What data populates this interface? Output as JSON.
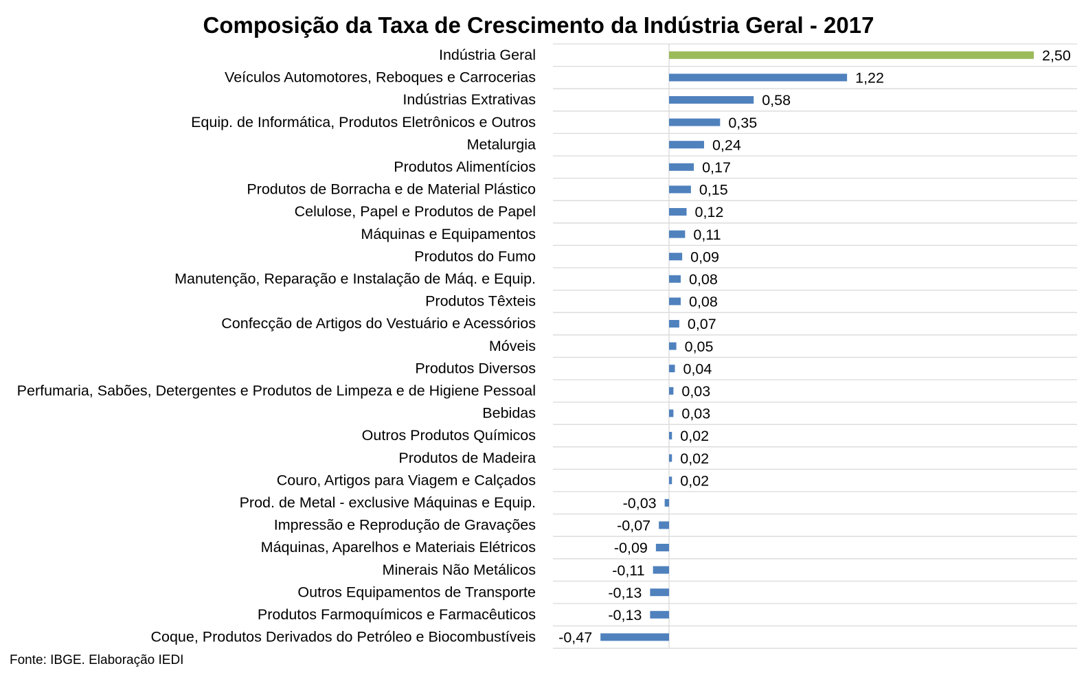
{
  "chart_data": {
    "type": "bar",
    "orientation": "horizontal",
    "title": "Composição da Taxa de Crescimento da Indústria Geral - 2017",
    "source": "Fonte: IBGE. Elaboração IEDI",
    "xlabel": "",
    "ylabel": "",
    "xlim": [
      -0.8,
      2.8
    ],
    "grid": "horizontal-separators",
    "legend": "none",
    "colors": {
      "highlight": "#9bbb59",
      "default": "#4f81bd",
      "grid": "#d9d9d9"
    },
    "categories": [
      "Indústria Geral",
      "Veículos Automotores, Reboques e Carrocerias",
      "Indústrias Extrativas",
      "Equip. de Informática, Produtos Eletrônicos e Outros",
      "Metalurgia",
      "Produtos Alimentícios",
      "Produtos de Borracha e de Material Plástico",
      "Celulose, Papel e Produtos de Papel",
      "Máquinas e Equipamentos",
      "Produtos do Fumo",
      "Manutenção, Reparação e Instalação de Máq. e Equip.",
      "Produtos Têxteis",
      "Confecção de Artigos do Vestuário e Acessórios",
      "Móveis",
      "Produtos Diversos",
      "Perfumaria, Sabões, Detergentes e Produtos de Limpeza e de Higiene Pessoal",
      "Bebidas",
      "Outros Produtos Químicos",
      "Produtos de Madeira",
      "Couro, Artigos para Viagem e Calçados",
      "Prod. de Metal - exclusive Máquinas e Equip.",
      "Impressão e Reprodução de Gravações",
      "Máquinas, Aparelhos e Materiais Elétricos",
      "Minerais Não Metálicos",
      "Outros Equipamentos de Transporte",
      "Produtos Farmoquímicos e Farmacêuticos",
      "Coque, Produtos Derivados do Petróleo e Biocombustíveis"
    ],
    "values": [
      2.5,
      1.22,
      0.58,
      0.35,
      0.24,
      0.17,
      0.15,
      0.12,
      0.11,
      0.09,
      0.08,
      0.08,
      0.07,
      0.05,
      0.04,
      0.03,
      0.03,
      0.02,
      0.02,
      0.02,
      -0.03,
      -0.07,
      -0.09,
      -0.11,
      -0.13,
      -0.13,
      -0.47
    ],
    "value_labels": [
      "2,50",
      "1,22",
      "0,58",
      "0,35",
      "0,24",
      "0,17",
      "0,15",
      "0,12",
      "0,11",
      "0,09",
      "0,08",
      "0,08",
      "0,07",
      "0,05",
      "0,04",
      "0,03",
      "0,03",
      "0,02",
      "0,02",
      "0,02",
      "-0,03",
      "-0,07",
      "-0,09",
      "-0,11",
      "-0,13",
      "-0,13",
      "-0,47"
    ],
    "highlighted_category": "Indústria Geral"
  }
}
